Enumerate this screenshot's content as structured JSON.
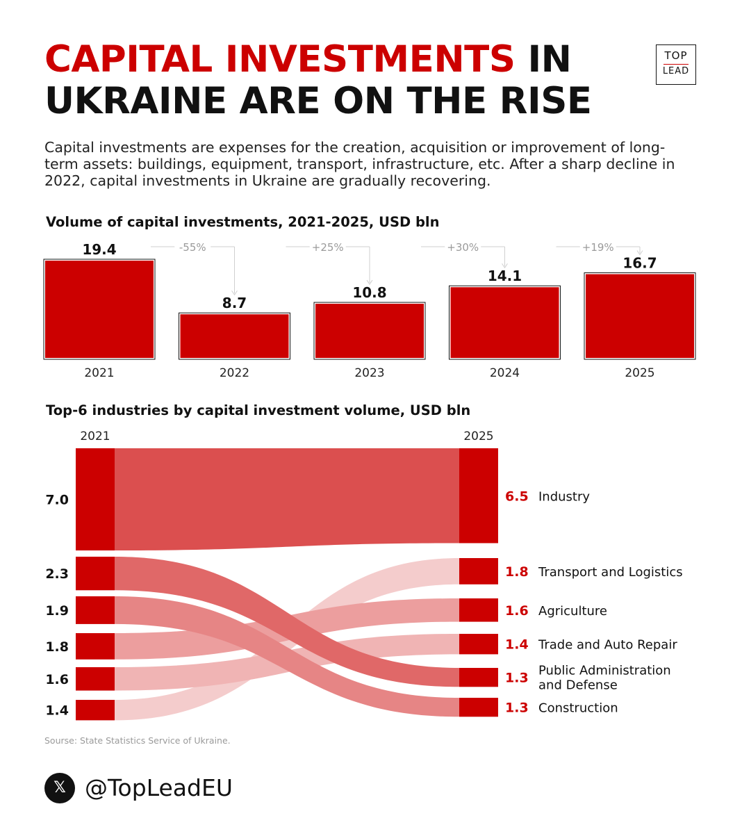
{
  "title": {
    "highlight": "CAPITAL INVESTMENTS",
    "rest_line1": " IN",
    "line2": "UKRAINE ARE ON THE RISE"
  },
  "logo": {
    "line1": "TOP",
    "line2": "LEAD"
  },
  "intro": "Capital investments are expenses for the creation, acquisition or improvement of long-term assets: buildings, equipment, transport, infrastructure, etc. After a sharp decline in 2022, capital investments in Ukraine are gradually recovering.",
  "colors": {
    "accent": "#cc0000",
    "text": "#111111",
    "muted": "#9a9a9a"
  },
  "chart_data": [
    {
      "type": "bar",
      "title": "Volume of capital investments, 2021-2025, USD bln",
      "categories": [
        "2021",
        "2022",
        "2023",
        "2024",
        "2025"
      ],
      "values": [
        19.4,
        8.7,
        10.8,
        14.1,
        16.7
      ],
      "value_labels": [
        "19.4",
        "8.7",
        "10.8",
        "14.1",
        "16.7"
      ],
      "changes": [
        "-55%",
        "+25%",
        "+30%",
        "+19%"
      ],
      "ylim": [
        0,
        19.4
      ]
    },
    {
      "type": "sankey",
      "title": "Top-6 industries by capital investment volume, USD bln",
      "left_label": "2021",
      "right_label": "2025",
      "left": [
        {
          "label": "7.0",
          "value": 7.0,
          "target": 0
        },
        {
          "label": "2.3",
          "value": 2.3,
          "target": 4
        },
        {
          "label": "1.9",
          "value": 1.9,
          "target": 5
        },
        {
          "label": "1.8",
          "value": 1.8,
          "target": 2
        },
        {
          "label": "1.6",
          "value": 1.6,
          "target": 3
        },
        {
          "label": "1.4",
          "value": 1.4,
          "target": 1
        }
      ],
      "right": [
        {
          "label": "6.5",
          "value": 6.5,
          "name": "Industry"
        },
        {
          "label": "1.8",
          "value": 1.8,
          "name": "Transport and Logistics"
        },
        {
          "label": "1.6",
          "value": 1.6,
          "name": "Agriculture"
        },
        {
          "label": "1.4",
          "value": 1.4,
          "name": "Trade and Auto Repair"
        },
        {
          "label": "1.3",
          "value": 1.3,
          "name": "Public Administration and Defense"
        },
        {
          "label": "1.3",
          "value": 1.3,
          "name": "Construction"
        }
      ]
    }
  ],
  "source": "Sourse: State Statistics Service of Ukraine.",
  "social": {
    "icon": "x-icon",
    "symbol": "𝕏",
    "handle": "@TopLeadEU"
  }
}
